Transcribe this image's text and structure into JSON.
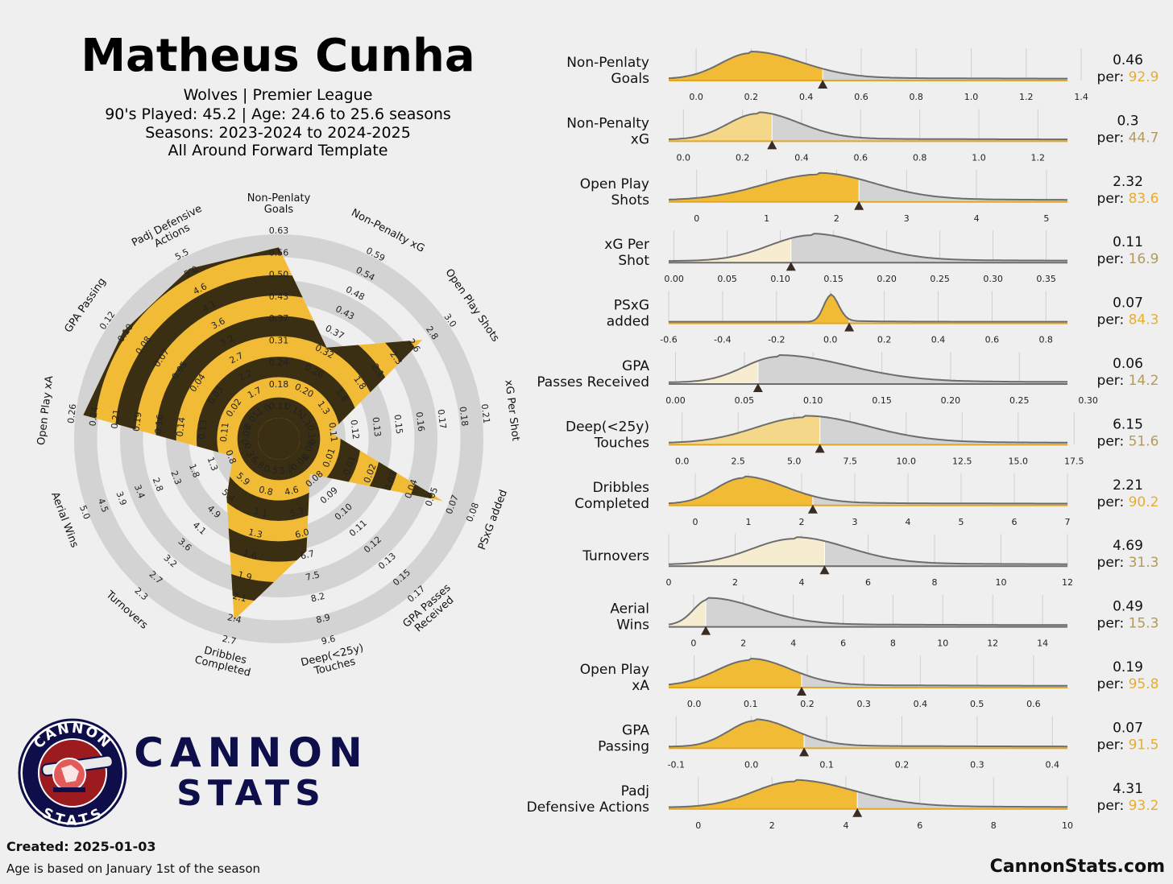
{
  "header": {
    "player": "Matheus Cunha",
    "team_league": "Wolves | Premier League",
    "played_age": "90's Played: 45.2 | Age: 24.6 to 25.6 seasons",
    "seasons": "Seasons: 2023-2024 to 2024-2025",
    "template": "All Around Forward Template"
  },
  "footer": {
    "created": "Created: 2025-01-03",
    "age_note": "Age is based on January 1st of the season",
    "site": "CannonStats.com"
  },
  "logo": {
    "ring_top": "CANNON",
    "ring_bottom": "STATS",
    "word1": "CANNON",
    "word2": "STATS"
  },
  "colors": {
    "gold": "#f2bb36",
    "gold_light": "#f5d789",
    "gold_pale": "#f6ecd0",
    "dark": "#3a2f13",
    "ring": "#d3d3d3",
    "curve": "#6d6d6d",
    "per_high": "#e9ad2c",
    "per_low": "#b39a5d",
    "navy": "#0e0f4a",
    "logo_red": "#9b1b1f"
  },
  "chart_data": [
    {
      "type": "radar",
      "title": "",
      "axes": [
        {
          "label": [
            "Non-Penlaty",
            "Goals"
          ],
          "ticks": [
            "0.11",
            "0.18",
            "0.24",
            "0.31",
            "0.37",
            "0.43",
            "0.50",
            "0.56",
            "0.63"
          ],
          "value": 0.46
        },
        {
          "label": [
            "Non-Penalty xG"
          ],
          "ticks": [
            "0.15",
            "0.20",
            "0.26",
            "0.32",
            "0.37",
            "0.43",
            "0.48",
            "0.54",
            "0.59"
          ],
          "value": 0.3
        },
        {
          "label": [
            "Open Play Shots"
          ],
          "ticks": [
            "1.1",
            "1.3",
            "1.6",
            "1.8",
            "2.1",
            "2.3",
            "2.6",
            "2.8",
            "3.0"
          ],
          "value": 2.32
        },
        {
          "label": [
            "xG Per Shot"
          ],
          "ticks": [
            "0.10",
            "0.11",
            "0.12",
            "0.13",
            "0.15",
            "0.16",
            "0.17",
            "0.18",
            "0.21"
          ],
          "value": 0.11
        },
        {
          "label": [
            "PSxG added"
          ],
          "ticks": [
            "0.00",
            "0.01",
            "0.01",
            "0.02",
            "0.03",
            "0.04",
            "0.05",
            "0.07",
            "0.08"
          ],
          "value": 0.07
        },
        {
          "label": [
            "GPA Passes",
            "Received"
          ],
          "ticks": [
            "0.06",
            "0.08",
            "0.09",
            "0.10",
            "0.11",
            "0.12",
            "0.13",
            "0.15",
            "0.17"
          ],
          "value": 0.06
        },
        {
          "label": [
            "Deep(<25y)",
            "Touches"
          ],
          "ticks": [
            "3.8",
            "4.6",
            "5.3",
            "6.0",
            "6.7",
            "7.5",
            "8.2",
            "8.9",
            "9.6"
          ],
          "value": 6.15
        },
        {
          "label": [
            "Dribbles",
            "Completed"
          ],
          "ticks": [
            "0.5",
            "0.8",
            "1.1",
            "1.3",
            "1.6",
            "1.9",
            "2.1",
            "2.4",
            "2.7"
          ],
          "value": 2.21
        },
        {
          "label": [
            "Turnovers"
          ],
          "ticks": [
            "6.8",
            "5.9",
            "5.4",
            "4.9",
            "4.1",
            "3.6",
            "3.2",
            "2.7",
            "2.3"
          ],
          "value": 4.69
        },
        {
          "label": [
            "Aerial Wins"
          ],
          "ticks": [
            "0.3",
            "0.8",
            "1.3",
            "1.8",
            "2.3",
            "2.8",
            "3.4",
            "3.9",
            "4.5",
            "5.0"
          ],
          "value": 0.49
        },
        {
          "label": [
            "Open Play xA"
          ],
          "ticks": [
            "0.09",
            "0.11",
            "0.13",
            "0.14",
            "0.16",
            "0.19",
            "0.21",
            "0.24",
            "0.26"
          ],
          "value": 0.19
        },
        {
          "label": [
            "GPA Passing"
          ],
          "ticks": [
            "0.01",
            "0.02",
            "0.03",
            "0.04",
            "0.05",
            "0.07",
            "0.08",
            "0.10",
            "0.12"
          ],
          "value": 0.07
        },
        {
          "label": [
            "Padj Defensive",
            "Actions"
          ],
          "ticks": [
            "1.0",
            "1.7",
            "2.2",
            "2.7",
            "3.2",
            "3.6",
            "4.1",
            "4.6",
            "5.0",
            "5.5"
          ],
          "value": 4.31
        }
      ],
      "percentiles": [
        92.9,
        44.7,
        83.6,
        16.9,
        84.3,
        14.2,
        51.6,
        90.2,
        31.3,
        15.3,
        95.8,
        91.5,
        93.2
      ]
    },
    {
      "type": "area",
      "title": "distribution panels",
      "panels": [
        {
          "label": [
            "Non-Penlaty",
            "Goals"
          ],
          "value_text": "0.46",
          "per": "92.9",
          "value": 0.46,
          "xmin": -0.1,
          "xmax": 1.35,
          "ticks": [
            "0.0",
            "0.2",
            "0.4",
            "0.6",
            "0.8",
            "1.0",
            "1.2",
            "1.4"
          ],
          "tick_values": [
            0,
            0.2,
            0.4,
            0.6,
            0.8,
            1.0,
            1.2,
            1.4
          ],
          "peak": 0.2,
          "spread_l": 0.11,
          "spread_r": 0.18
        },
        {
          "label": [
            "Non-Penalty",
            "xG"
          ],
          "value_text": "0.3",
          "per": "44.7",
          "value": 0.3,
          "xmin": -0.05,
          "xmax": 1.3,
          "ticks": [
            "0.0",
            "0.2",
            "0.4",
            "0.6",
            "0.8",
            "1.0",
            "1.2"
          ],
          "tick_values": [
            0,
            0.2,
            0.4,
            0.6,
            0.8,
            1.0,
            1.2
          ],
          "peak": 0.25,
          "spread_l": 0.1,
          "spread_r": 0.14
        },
        {
          "label": [
            "Open Play",
            "Shots"
          ],
          "value_text": "2.32",
          "per": "83.6",
          "value": 2.32,
          "xmin": -0.4,
          "xmax": 5.3,
          "ticks": [
            "0",
            "1",
            "2",
            "3",
            "4",
            "5"
          ],
          "tick_values": [
            0,
            1,
            2,
            3,
            4,
            5
          ],
          "peak": 1.75,
          "spread_l": 0.8,
          "spread_r": 0.8
        },
        {
          "label": [
            "xG Per",
            "Shot"
          ],
          "value_text": "0.11",
          "per": "16.9",
          "value": 0.11,
          "xmin": -0.005,
          "xmax": 0.37,
          "ticks": [
            "0.00",
            "0.05",
            "0.10",
            "0.15",
            "0.20",
            "0.25",
            "0.30",
            "0.35"
          ],
          "tick_values": [
            0,
            0.05,
            0.1,
            0.15,
            0.2,
            0.25,
            0.3,
            0.35
          ],
          "peak": 0.13,
          "spread_l": 0.04,
          "spread_r": 0.05
        },
        {
          "label": [
            "PSxG",
            "added"
          ],
          "value_text": "0.07",
          "per": "84.3",
          "value": 0.07,
          "xmin": -0.6,
          "xmax": 0.88,
          "ticks": [
            "-0.6",
            "-0.4",
            "-0.2",
            "0.0",
            "0.2",
            "0.4",
            "0.6",
            "0.8"
          ],
          "tick_values": [
            -0.6,
            -0.4,
            -0.2,
            0,
            0.2,
            0.4,
            0.6,
            0.8
          ],
          "peak": 0.0,
          "spread_l": 0.025,
          "spread_r": 0.03
        },
        {
          "label": [
            "GPA",
            "Passes Received"
          ],
          "value_text": "0.06",
          "per": "14.2",
          "value": 0.06,
          "xmin": -0.005,
          "xmax": 0.285,
          "ticks": [
            "0.00",
            "0.05",
            "0.10",
            "0.15",
            "0.20",
            "0.25",
            "0.30"
          ],
          "tick_values": [
            0,
            0.05,
            0.1,
            0.15,
            0.2,
            0.25,
            0.3
          ],
          "peak": 0.075,
          "spread_l": 0.025,
          "spread_r": 0.05
        },
        {
          "label": [
            "Deep(<25y)",
            "Touches"
          ],
          "value_text": "6.15",
          "per": "51.6",
          "value": 6.15,
          "xmin": -0.6,
          "xmax": 17.2,
          "ticks": [
            "0.0",
            "2.5",
            "5.0",
            "7.5",
            "10.0",
            "12.5",
            "15.0",
            "17.5"
          ],
          "tick_values": [
            0,
            2.5,
            5,
            7.5,
            10,
            12.5,
            15,
            17.5
          ],
          "peak": 5.5,
          "spread_l": 2.2,
          "spread_r": 2.8
        },
        {
          "label": [
            "Dribbles",
            "Completed"
          ],
          "value_text": "2.21",
          "per": "90.2",
          "value": 2.21,
          "xmin": -0.5,
          "xmax": 7.0,
          "ticks": [
            "0",
            "1",
            "2",
            "3",
            "4",
            "5",
            "6",
            "7"
          ],
          "tick_values": [
            0,
            1,
            2,
            3,
            4,
            5,
            6,
            7
          ],
          "peak": 0.9,
          "spread_l": 0.5,
          "spread_r": 0.8
        },
        {
          "label": [
            "Turnovers"
          ],
          "value_text": "4.69",
          "per": "31.3",
          "value": 4.69,
          "xmin": 0.0,
          "xmax": 12.0,
          "ticks": [
            "0",
            "2",
            "4",
            "6",
            "8",
            "10",
            "12"
          ],
          "tick_values": [
            0,
            2,
            4,
            6,
            8,
            10,
            12
          ],
          "peak": 3.8,
          "spread_l": 1.3,
          "spread_r": 1.6
        },
        {
          "label": [
            "Aerial",
            "Wins"
          ],
          "value_text": "0.49",
          "per": "15.3",
          "value": 0.49,
          "xmin": -1.0,
          "xmax": 15.0,
          "ticks": [
            "0",
            "2",
            "4",
            "6",
            "8",
            "10",
            "12",
            "14"
          ],
          "tick_values": [
            0,
            2,
            4,
            6,
            8,
            10,
            12,
            14
          ],
          "peak": 0.6,
          "spread_l": 0.6,
          "spread_r": 2.0
        },
        {
          "label": [
            "Open Play",
            "xA"
          ],
          "value_text": "0.19",
          "per": "95.8",
          "value": 0.19,
          "xmin": -0.045,
          "xmax": 0.66,
          "ticks": [
            "0.0",
            "0.1",
            "0.2",
            "0.3",
            "0.4",
            "0.5",
            "0.6"
          ],
          "tick_values": [
            0,
            0.1,
            0.2,
            0.3,
            0.4,
            0.5,
            0.6
          ],
          "peak": 0.1,
          "spread_l": 0.06,
          "spread_r": 0.07
        },
        {
          "label": [
            "GPA",
            "Passing"
          ],
          "value_text": "0.07",
          "per": "91.5",
          "value": 0.07,
          "xmin": -0.11,
          "xmax": 0.42,
          "ticks": [
            "-0.1",
            "0.0",
            "0.1",
            "0.2",
            "0.3",
            "0.4"
          ],
          "tick_values": [
            -0.1,
            0,
            0.1,
            0.2,
            0.3,
            0.4
          ],
          "peak": 0.005,
          "spread_l": 0.035,
          "spread_r": 0.05
        },
        {
          "label": [
            "Padj",
            "Defensive Actions"
          ],
          "value_text": "4.31",
          "per": "93.2",
          "value": 4.31,
          "xmin": -0.8,
          "xmax": 10.0,
          "ticks": [
            "0",
            "2",
            "4",
            "6",
            "8",
            "10"
          ],
          "tick_values": [
            0,
            2,
            4,
            6,
            8,
            10
          ],
          "peak": 2.6,
          "spread_l": 1.1,
          "spread_r": 1.6
        }
      ]
    }
  ]
}
